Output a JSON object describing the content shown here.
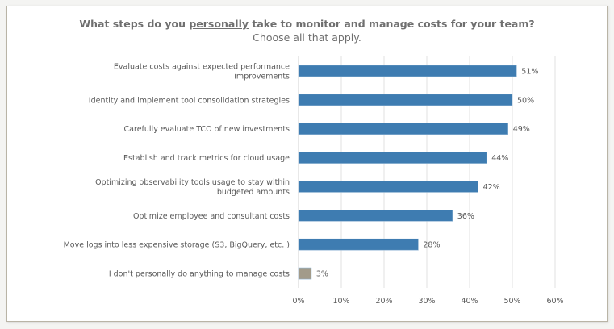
{
  "chart_data": {
    "type": "bar",
    "orientation": "horizontal",
    "title_parts": [
      "What steps do you ",
      "personally",
      " take to monitor and manage costs for your team?"
    ],
    "title": "What steps do you personally take to monitor and manage costs for your team?",
    "subtitle": "Choose all that apply.",
    "categories": [
      [
        "Evaluate costs against expected performance",
        "improvements"
      ],
      [
        "Identity and implement tool consolidation strategies"
      ],
      [
        "Carefully evaluate TCO of new investments"
      ],
      [
        "Establish and track metrics for cloud usage"
      ],
      [
        "Optimizing observability tools usage to stay within",
        "budgeted amounts"
      ],
      [
        "Optimize employee and consultant costs"
      ],
      [
        "Move logs into less expensive storage (S3, BigQuery, etc. )"
      ],
      [
        "I don't personally do anything to manage costs"
      ]
    ],
    "values": [
      51,
      50,
      49,
      44,
      42,
      36,
      28,
      3
    ],
    "value_labels": [
      "51%",
      "50%",
      "49%",
      "44%",
      "42%",
      "36%",
      "28%",
      "3%"
    ],
    "bar_colors": [
      "#3e7cb1",
      "#3e7cb1",
      "#3e7cb1",
      "#3e7cb1",
      "#3e7cb1",
      "#3e7cb1",
      "#3e7cb1",
      "#a29b8a"
    ],
    "xlim": [
      0,
      60
    ],
    "xticks": [
      0,
      10,
      20,
      30,
      40,
      50,
      60
    ],
    "xtick_labels": [
      "0%",
      "10%",
      "20%",
      "30%",
      "40%",
      "50%",
      "60%"
    ],
    "grid": true,
    "xlabel": "",
    "ylabel": "",
    "legend": "none"
  }
}
